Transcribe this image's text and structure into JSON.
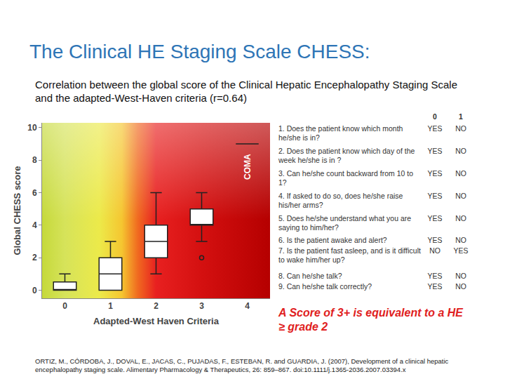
{
  "title": "The Clinical HE Staging Scale CHESS:",
  "subtitle": "Correlation between the global score of the Clinical Hepatic Encephalopathy Staging Scale and the adapted-West-Haven criteria (r=0.64)",
  "chart_data": {
    "type": "box",
    "x_label": "Adapted-West Haven Criteria",
    "y_label": "Global CHESS score",
    "categories": [
      "0",
      "1",
      "2",
      "3",
      "4"
    ],
    "lowerfence": [
      0,
      0,
      1,
      3,
      9
    ],
    "q1": [
      0,
      0,
      2,
      4,
      9
    ],
    "median": [
      0,
      1,
      3,
      4,
      9
    ],
    "q3": [
      0.5,
      2,
      4,
      5,
      9
    ],
    "upperfence": [
      1,
      3,
      6,
      6,
      9
    ],
    "outliers": [
      {
        "category": "3",
        "value": 2
      }
    ],
    "color": "#ffffff",
    "ylim": [
      -0.5,
      10.3
    ],
    "yticks": [
      0,
      2,
      4,
      6,
      8,
      10
    ],
    "grid": false,
    "annotations": [
      {
        "text": "COMA",
        "category": "4",
        "y": 7.6
      }
    ]
  },
  "questions": {
    "header": [
      "0",
      "1"
    ],
    "rows": [
      {
        "text": "1. Does the patient know which month he/she is in?",
        "answers": [
          "YES",
          "NO"
        ]
      },
      {
        "text": "2. Does the patient know which day of the week he/she is in ?",
        "answers": [
          "YES",
          "NO"
        ]
      },
      {
        "text": "3. Can he/she count backward from 10 to 1?",
        "answers": [
          "YES",
          "NO"
        ]
      },
      {
        "text": "4. If asked to do so, does he/she raise his/her arms?",
        "answers": [
          "YES",
          "NO"
        ]
      },
      {
        "text": "5. Does he/she understand what you are saying to him/her?",
        "answers": [
          "YES",
          "NO"
        ]
      },
      {
        "text": "6. Is the patient awake and alert?",
        "answers": [
          "YES",
          "NO"
        ]
      },
      {
        "text": "7. Is the patient fast asleep, and is it difficult to wake him/her up?",
        "answers": [
          "NO",
          "YES"
        ]
      },
      {
        "text": "8. Can he/she talk?",
        "answers": [
          "YES",
          "NO"
        ]
      },
      {
        "text": "9. Can he/she talk correctly?",
        "answers": [
          "YES",
          "NO"
        ]
      }
    ]
  },
  "note": "A Score of 3+ is equivalent to a HE ≥ grade 2",
  "citation": "ORTIZ, M., CÓRDOBA, J., DOVAL, E., JACAS, C., PUJADAS, F., ESTEBAN, R. and GUARDIA, J. (2007), Development of a clinical hepatic encephalopathy staging scale. Alimentary Pharmacology & Therapeutics, 26: 859–867. doi:10.1111/j.1365-2036.2007.03394.x"
}
